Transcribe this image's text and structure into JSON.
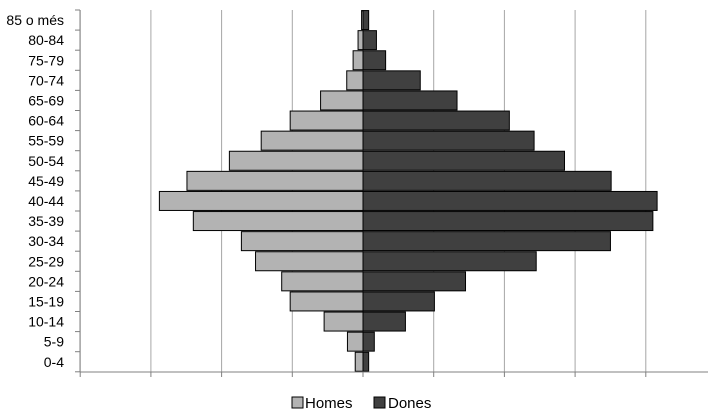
{
  "chart_data": {
    "type": "bar",
    "orientation": "horizontal",
    "chart_kind": "population pyramid",
    "title": "",
    "xlabel": "",
    "ylabel": "",
    "categories": [
      "0-4",
      "5-9",
      "10-14",
      "15-19",
      "20-24",
      "25-29",
      "30-34",
      "35-39",
      "40-44",
      "45-49",
      "50-54",
      "55-59",
      "60-64",
      "65-69",
      "70-74",
      "75-79",
      "80-84",
      "85 o més"
    ],
    "series": [
      {
        "name": "Homes",
        "side": "left",
        "color": "#b3b3b3",
        "values": [
          1.1,
          2.2,
          5.5,
          10.3,
          11.5,
          15.2,
          17.2,
          24.0,
          28.8,
          24.9,
          18.9,
          14.4,
          10.3,
          6.0,
          2.3,
          1.4,
          0.7,
          0.2
        ]
      },
      {
        "name": "Dones",
        "side": "right",
        "color": "#404040",
        "values": [
          0.8,
          1.6,
          6.0,
          10.1,
          14.5,
          24.5,
          35.0,
          41.0,
          41.6,
          35.1,
          28.5,
          24.2,
          20.7,
          13.3,
          8.1,
          3.2,
          1.9,
          0.8
        ]
      }
    ],
    "xlim": [
      -40,
      50
    ],
    "x_gridline_step": 10,
    "x_tick_labels_shown": false,
    "grid": {
      "vertical": true,
      "horizontal": false
    },
    "legend": {
      "position": "bottom-center",
      "entries": [
        "Homes",
        "Dones"
      ]
    }
  }
}
